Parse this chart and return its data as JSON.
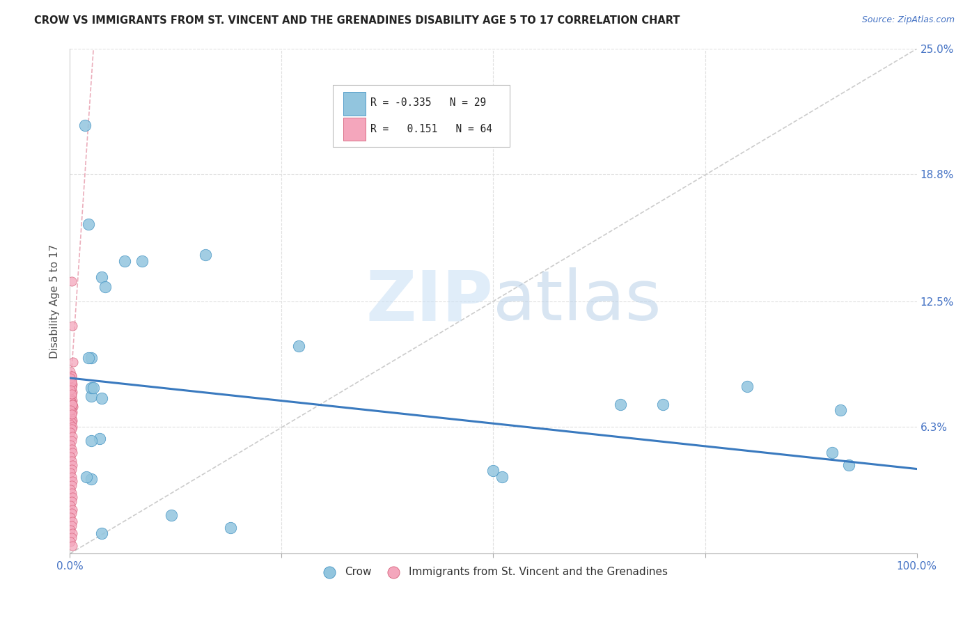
{
  "title": "CROW VS IMMIGRANTS FROM ST. VINCENT AND THE GRENADINES DISABILITY AGE 5 TO 17 CORRELATION CHART",
  "source": "Source: ZipAtlas.com",
  "ylabel": "Disability Age 5 to 17",
  "xlim": [
    0,
    1.0
  ],
  "ylim": [
    0,
    0.25
  ],
  "crow_color": "#92c5de",
  "crow_edge_color": "#4393c3",
  "immigrant_color": "#f4a6bc",
  "immigrant_edge_color": "#d6607a",
  "trend_blue_color": "#3a7abf",
  "trend_pink_color": "#e8a0b0",
  "diagonal_color": "#cccccc",
  "grid_color": "#e0e0e0",
  "watermark_color": "#ddeeff",
  "axis_label_color": "#4472c4",
  "legend_r_crow": "-0.335",
  "legend_n_crow": "29",
  "legend_r_immig": "0.151",
  "legend_n_immig": "64",
  "blue_trend_x": [
    0.0,
    1.0
  ],
  "blue_trend_y": [
    0.087,
    0.042
  ],
  "pink_trend_x": [
    0.0,
    0.028
  ],
  "pink_trend_y": [
    0.077,
    0.25
  ],
  "crow_points_x": [
    0.025,
    0.038,
    0.042,
    0.022,
    0.065,
    0.085,
    0.025,
    0.035,
    0.038,
    0.018,
    0.16,
    0.27,
    0.65,
    0.7,
    0.8,
    0.9,
    0.91,
    0.92,
    0.5,
    0.51,
    0.025,
    0.12,
    0.19,
    0.025,
    0.025,
    0.02,
    0.022,
    0.028,
    0.038
  ],
  "crow_points_y": [
    0.097,
    0.137,
    0.132,
    0.097,
    0.145,
    0.145,
    0.078,
    0.057,
    0.077,
    0.212,
    0.148,
    0.103,
    0.074,
    0.074,
    0.083,
    0.05,
    0.071,
    0.044,
    0.041,
    0.038,
    0.037,
    0.019,
    0.013,
    0.082,
    0.056,
    0.038,
    0.163,
    0.082,
    0.01
  ],
  "immig_points_x": [
    0.002,
    0.003,
    0.004,
    0.002,
    0.003,
    0.002,
    0.001,
    0.003,
    0.002,
    0.004,
    0.001,
    0.002,
    0.003,
    0.001,
    0.002,
    0.003,
    0.002,
    0.001,
    0.003,
    0.002,
    0.001,
    0.003,
    0.002,
    0.001,
    0.002,
    0.003,
    0.001,
    0.002,
    0.003,
    0.002,
    0.001,
    0.002,
    0.003,
    0.002,
    0.001,
    0.002,
    0.003,
    0.002,
    0.001,
    0.003,
    0.002,
    0.001,
    0.003,
    0.002,
    0.001,
    0.003,
    0.002,
    0.001,
    0.003,
    0.002,
    0.001,
    0.002,
    0.003,
    0.002,
    0.001,
    0.003,
    0.002,
    0.001,
    0.002,
    0.001,
    0.002,
    0.003,
    0.001,
    0.002
  ],
  "immig_points_y": [
    0.135,
    0.113,
    0.095,
    0.083,
    0.08,
    0.078,
    0.077,
    0.076,
    0.075,
    0.073,
    0.072,
    0.071,
    0.07,
    0.068,
    0.067,
    0.066,
    0.065,
    0.064,
    0.063,
    0.062,
    0.06,
    0.058,
    0.056,
    0.054,
    0.052,
    0.05,
    0.048,
    0.046,
    0.044,
    0.042,
    0.04,
    0.038,
    0.036,
    0.034,
    0.032,
    0.03,
    0.028,
    0.026,
    0.024,
    0.022,
    0.02,
    0.018,
    0.016,
    0.014,
    0.012,
    0.01,
    0.008,
    0.006,
    0.004,
    0.086,
    0.09,
    0.088,
    0.084,
    0.082,
    0.076,
    0.074,
    0.088,
    0.087,
    0.085,
    0.081,
    0.079,
    0.074,
    0.071,
    0.069
  ]
}
